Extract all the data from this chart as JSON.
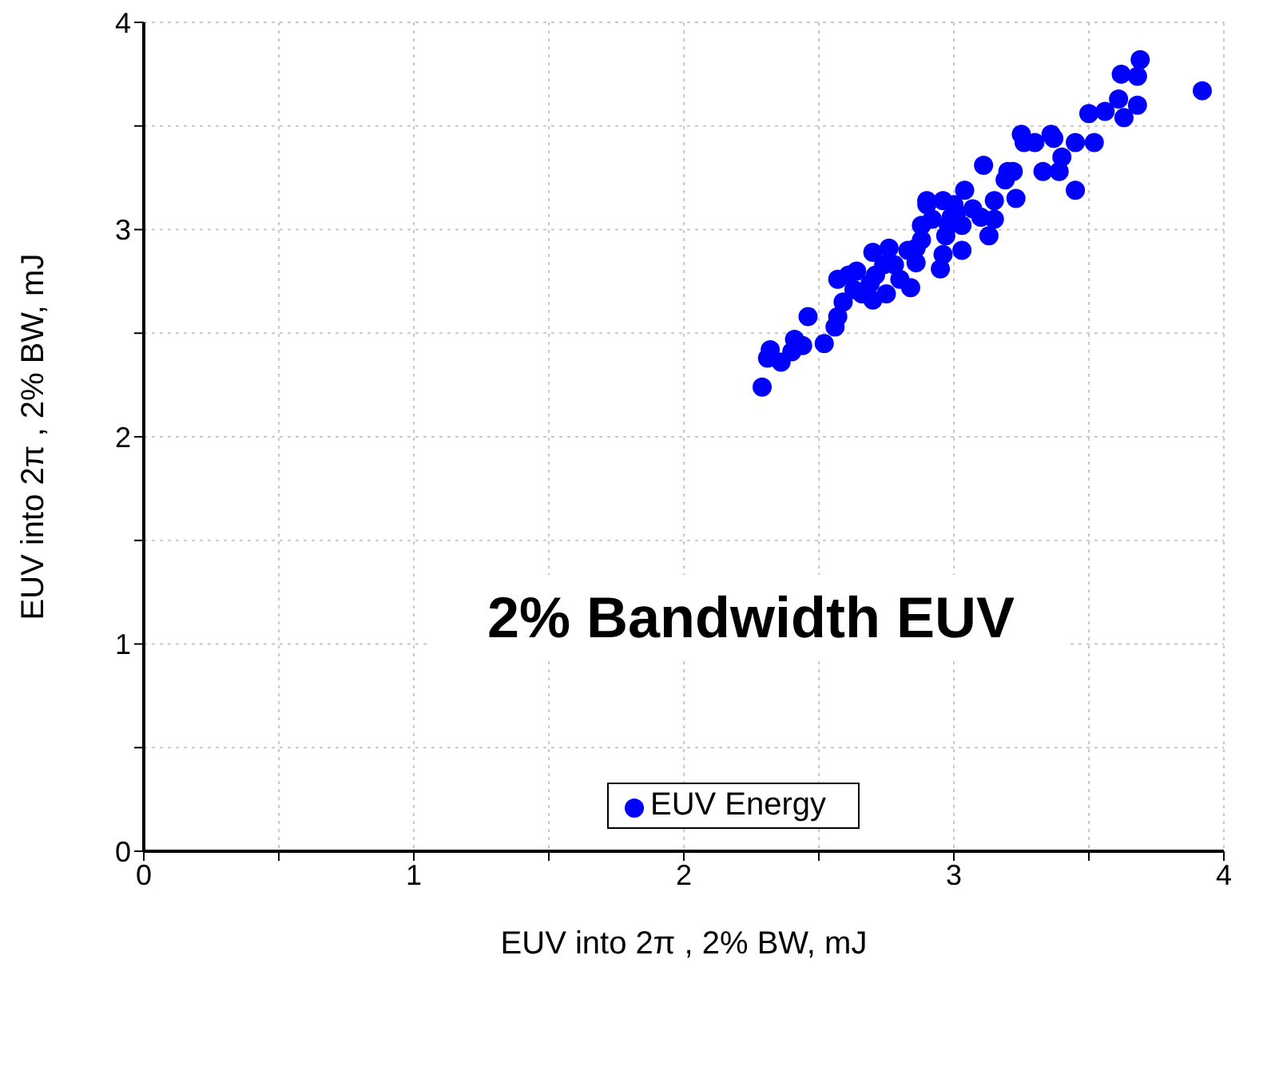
{
  "chart_data": {
    "type": "scatter",
    "title": "2% Bandwidth EUV",
    "xlabel": "EUV into 2π , 2% BW, mJ",
    "ylabel": "EUV into 2π , 2% BW, mJ",
    "xlim": [
      0,
      4
    ],
    "ylim": [
      0,
      4
    ],
    "xticks": [
      0,
      {
        "value": 0.5,
        "label": null
      },
      1,
      {
        "value": 1.5,
        "label": null
      },
      2,
      {
        "value": 2.5,
        "label": null
      },
      3,
      {
        "value": 3.5,
        "label": null
      },
      4
    ],
    "yticks": [
      0,
      {
        "value": 0.5,
        "label": null
      },
      1,
      {
        "value": 1.5,
        "label": null
      },
      2,
      {
        "value": 2.5,
        "label": null
      },
      3,
      {
        "value": 3.5,
        "label": null
      },
      4
    ],
    "grid": true,
    "legend": "bottom",
    "marker": "circle",
    "series": [
      {
        "name": "EUV Energy",
        "color": "#0000ff",
        "x": [
          2.29,
          2.31,
          2.32,
          2.36,
          2.4,
          2.41,
          2.44,
          2.46,
          2.52,
          2.56,
          2.57,
          2.57,
          2.61,
          2.59,
          2.63,
          2.64,
          2.66,
          2.69,
          2.71,
          2.74,
          2.7,
          2.76,
          2.7,
          2.8,
          2.84,
          2.86,
          2.86,
          2.88,
          2.9,
          2.92,
          2.95,
          2.96,
          2.97,
          2.99,
          3.03,
          3.0,
          3.04,
          3.03,
          3.07,
          3.1,
          3.11,
          3.13,
          3.15,
          3.19,
          3.2,
          3.23,
          3.25,
          3.26,
          3.33,
          3.37,
          3.39,
          3.4,
          3.45,
          3.45,
          3.52,
          3.5,
          3.56,
          3.61,
          3.63,
          3.68,
          3.62,
          3.68,
          3.69,
          3.92,
          3.15,
          2.96,
          2.83,
          2.9,
          2.78,
          2.75,
          3.01,
          2.98,
          3.36,
          3.3,
          3.22,
          2.88
        ],
        "values": [
          2.24,
          2.38,
          2.42,
          2.36,
          2.41,
          2.47,
          2.44,
          2.58,
          2.45,
          2.53,
          2.58,
          2.76,
          2.78,
          2.65,
          2.71,
          2.8,
          2.69,
          2.74,
          2.78,
          2.83,
          2.89,
          2.91,
          2.66,
          2.76,
          2.72,
          2.84,
          2.91,
          2.95,
          3.14,
          3.05,
          2.81,
          2.88,
          2.97,
          3.06,
          3.02,
          3.12,
          3.19,
          2.9,
          3.1,
          3.06,
          3.31,
          2.97,
          3.14,
          3.24,
          3.28,
          3.15,
          3.46,
          3.42,
          3.28,
          3.44,
          3.28,
          3.35,
          3.19,
          3.42,
          3.42,
          3.56,
          3.57,
          3.63,
          3.54,
          3.6,
          3.75,
          3.74,
          3.82,
          3.67,
          3.05,
          3.14,
          2.9,
          3.12,
          2.83,
          2.69,
          3.08,
          3.02,
          3.46,
          3.42,
          3.28,
          3.02
        ]
      }
    ]
  }
}
